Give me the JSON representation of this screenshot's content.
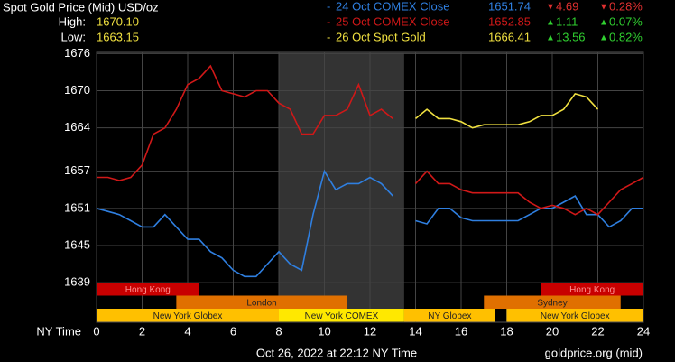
{
  "chart_data": {
    "type": "line",
    "title": "Spot Gold Price (Mid) USD/oz",
    "high_label": "High:",
    "high": "1670.10",
    "low_label": "Low:",
    "low": "1663.15",
    "x_axis_label": "NY Time",
    "footer": "Oct 26, 2022 at 22:12 NY Time",
    "source": "goldprice.org (mid)",
    "xlim": [
      0,
      24
    ],
    "xticks": [
      0,
      2,
      4,
      6,
      8,
      10,
      12,
      14,
      16,
      18,
      20,
      22,
      24
    ],
    "ylim": [
      1632.6,
      1676.2
    ],
    "yticks": [
      1676,
      1670,
      1664,
      1657,
      1651,
      1645,
      1639
    ],
    "grid": true,
    "shaded": [
      8,
      13.5
    ],
    "x": [
      0,
      0.5,
      1,
      1.5,
      2,
      2.5,
      3,
      3.5,
      4,
      4.5,
      5,
      5.5,
      6,
      6.5,
      7,
      7.5,
      8,
      8.5,
      9,
      9.5,
      10,
      10.5,
      11,
      11.5,
      12,
      12.5,
      13,
      13.5,
      14,
      14.5,
      15,
      15.5,
      16,
      16.5,
      17,
      17.5,
      18,
      18.5,
      19,
      19.5,
      20,
      20.5,
      21,
      21.5,
      22,
      22.5,
      23,
      23.5,
      24
    ],
    "series": [
      {
        "name": "24 Oct COMEX Close",
        "color": "#2f7fe0",
        "close": "1651.74",
        "change": "4.69",
        "change_pct": "0.28%",
        "change_color": "#e03030",
        "values": [
          1651,
          1650.5,
          1650,
          1649,
          1648,
          1648,
          1650,
          1648,
          1646,
          1646,
          1644,
          1643,
          1641,
          1640,
          1640,
          1642,
          1644,
          1642,
          1641,
          1650,
          1657,
          1654,
          1655,
          1655,
          1656,
          1655,
          1653,
          null,
          1649,
          1648.5,
          1651,
          1651,
          1649.5,
          1649,
          1649,
          1649,
          1649,
          1649,
          1650,
          1651,
          1651,
          1652,
          1653,
          1650,
          1650,
          1648,
          1649,
          1651,
          1651
        ]
      },
      {
        "name": "25 Oct COMEX Close",
        "color": "#d01818",
        "close": "1652.85",
        "change": "1.11",
        "change_pct": "0.07%",
        "change_color": "#30d030",
        "values": [
          1656,
          1656,
          1655.5,
          1656,
          1658,
          1663,
          1664,
          1667,
          1671,
          1672,
          1674,
          1670,
          1669.5,
          1669,
          1670,
          1670,
          1668,
          1667,
          1663,
          1663,
          1666,
          1666,
          1667,
          1671,
          1666,
          1667,
          1665.5,
          null,
          1655,
          1657,
          1655,
          1655,
          1654,
          1653.5,
          1653.5,
          1653.5,
          1653.5,
          1653.5,
          1652,
          1651,
          1651.5,
          1651,
          1650,
          1651,
          1650,
          1652,
          1654,
          1655,
          1656
        ]
      },
      {
        "name": "26 Oct Spot Gold",
        "color": "#f0e040",
        "close": "1666.41",
        "change": "13.56",
        "change_pct": "0.82%",
        "change_color": "#30d030",
        "values": [
          null,
          null,
          null,
          null,
          null,
          null,
          null,
          null,
          null,
          null,
          null,
          null,
          null,
          null,
          null,
          null,
          null,
          null,
          null,
          null,
          null,
          null,
          null,
          null,
          null,
          null,
          null,
          null,
          1665.5,
          1667,
          1665.5,
          1665.5,
          1665,
          1664,
          1664.5,
          1664.5,
          1664.5,
          1664.5,
          1665,
          1666,
          1666,
          1667,
          1669.5,
          1669,
          1667,
          null,
          null,
          null,
          null
        ]
      }
    ],
    "sessions": [
      {
        "name": "Hong Kong",
        "start": 0,
        "end": 4.5,
        "row": 0,
        "color": "#c80000"
      },
      {
        "name": "Hong Kong",
        "start": 19.5,
        "end": 24,
        "row": 0,
        "color": "#c80000"
      },
      {
        "name": "London",
        "start": 3.5,
        "end": 11,
        "row": 1,
        "color": "#e07000"
      },
      {
        "name": "Sydney",
        "start": 17,
        "end": 23,
        "row": 1,
        "color": "#e07000"
      },
      {
        "name": "New York Globex",
        "start": 0,
        "end": 8,
        "row": 2,
        "color": "#ffc000"
      },
      {
        "name": "New York COMEX",
        "start": 8,
        "end": 13.5,
        "row": 2,
        "color": "#ffe800"
      },
      {
        "name": "NY Globex",
        "start": 13.5,
        "end": 17.5,
        "row": 2,
        "color": "#ffc000"
      },
      {
        "name": "New York Globex",
        "start": 18,
        "end": 24,
        "row": 2,
        "color": "#ffc000"
      }
    ]
  }
}
